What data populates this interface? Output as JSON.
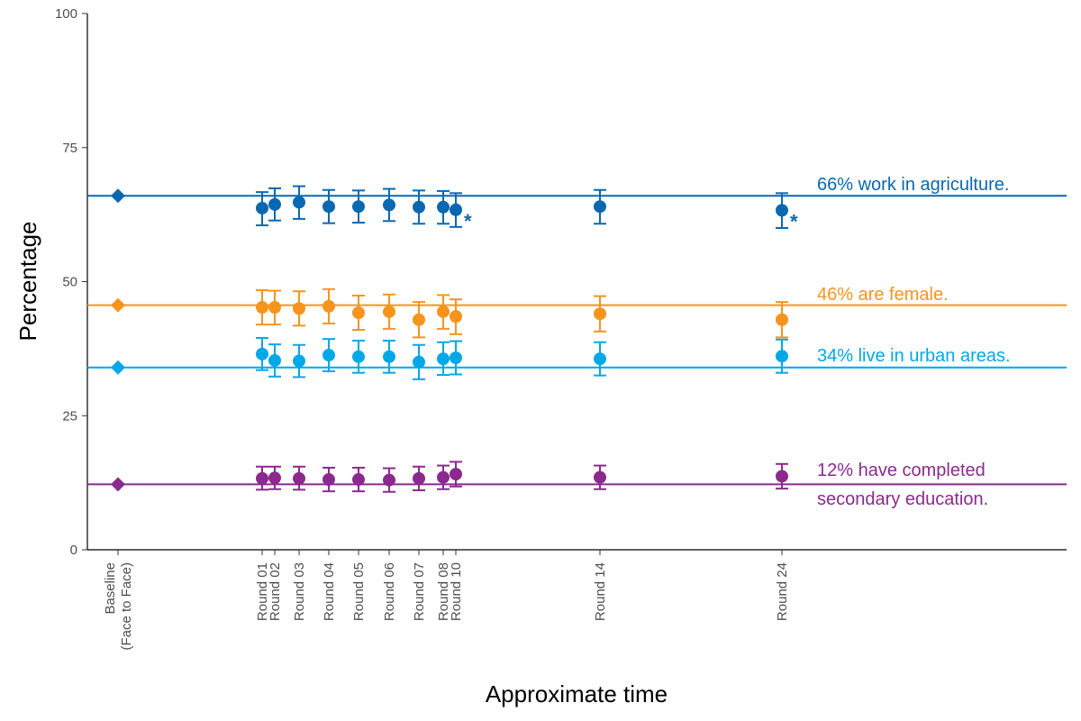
{
  "chart_data": {
    "type": "scatter",
    "title": "",
    "xlabel": "Approximate time",
    "ylabel": "Percentage",
    "ylim": [
      0,
      100
    ],
    "yticks": [
      0,
      25,
      50,
      75,
      100
    ],
    "grid": false,
    "legend": "none",
    "categories": [
      "Baseline\n(Face to Face)",
      "Round 01",
      "Round 02",
      "Round 03",
      "Round 04",
      "Round 05",
      "Round 06",
      "Round 07",
      "Round 08",
      "Round 10",
      "Round 14",
      "Round 24"
    ],
    "series": [
      {
        "label": "66% work in agriculture.",
        "color": "#0A68B0",
        "baseline": 66,
        "values": [
          66,
          63.7,
          64.4,
          64.8,
          64.0,
          64.0,
          64.3,
          63.9,
          63.9,
          63.4,
          64.0,
          63.3
        ],
        "err_low": [
          null,
          60.5,
          61.4,
          61.7,
          60.9,
          61.0,
          61.3,
          60.8,
          60.8,
          60.2,
          60.8,
          60.0
        ],
        "err_high": [
          null,
          66.7,
          67.4,
          67.8,
          67.1,
          67.0,
          67.3,
          67.0,
          66.9,
          66.5,
          67.1,
          66.5
        ],
        "stars": [
          9,
          11
        ]
      },
      {
        "label": "46% are female.",
        "color": "#F7941D",
        "baseline": 45.6,
        "values": [
          45.6,
          45.2,
          45.2,
          45.0,
          45.4,
          44.2,
          44.4,
          42.9,
          44.4,
          43.5,
          44.0,
          42.9
        ],
        "err_low": [
          null,
          42.0,
          42.0,
          41.8,
          42.2,
          41.0,
          41.2,
          39.6,
          41.2,
          40.2,
          40.7,
          39.6
        ],
        "err_high": [
          null,
          48.4,
          48.3,
          48.2,
          48.6,
          47.4,
          47.6,
          46.2,
          47.5,
          46.7,
          47.3,
          46.2
        ],
        "stars": []
      },
      {
        "label": "34% live in urban areas.",
        "color": "#00A8E8",
        "baseline": 34,
        "values": [
          34,
          36.5,
          35.3,
          35.2,
          36.3,
          36.0,
          36.0,
          35.0,
          35.6,
          35.8,
          35.6,
          36.1
        ],
        "err_low": [
          null,
          33.5,
          32.3,
          32.2,
          33.3,
          33.0,
          33.0,
          31.8,
          32.6,
          32.7,
          32.5,
          33.0
        ],
        "err_high": [
          null,
          39.5,
          38.3,
          38.2,
          39.3,
          39.0,
          39.0,
          38.2,
          38.7,
          38.9,
          38.7,
          39.2
        ],
        "stars": []
      },
      {
        "label": "12% have completed\nsecondary education.",
        "color": "#8B2A8E",
        "baseline": 12.2,
        "values": [
          12.2,
          13.3,
          13.4,
          13.3,
          13.1,
          13.1,
          13.0,
          13.3,
          13.5,
          14.1,
          13.5,
          13.7
        ],
        "err_low": [
          null,
          11.2,
          11.3,
          11.2,
          10.9,
          10.9,
          10.8,
          11.1,
          11.3,
          11.8,
          11.3,
          11.4
        ],
        "err_high": [
          null,
          15.5,
          15.5,
          15.5,
          15.3,
          15.3,
          15.2,
          15.5,
          15.7,
          16.4,
          15.7,
          16.0
        ],
        "stars": []
      }
    ]
  }
}
